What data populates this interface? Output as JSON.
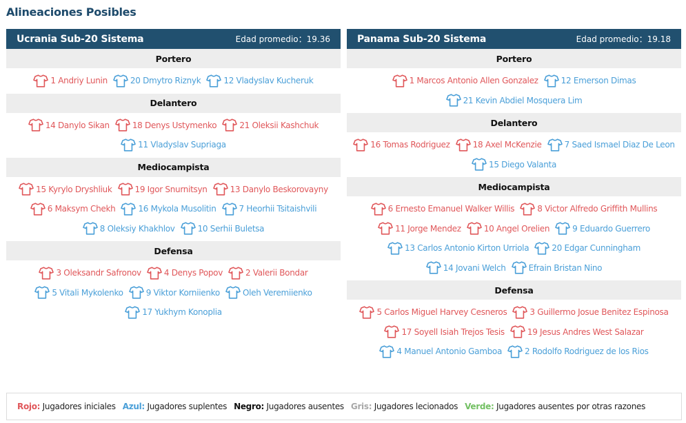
{
  "page": {
    "title": "Alineaciones Posibles"
  },
  "colors": {
    "starter": "#e0575a",
    "substitute": "#4a9fd8",
    "header_bg": "#21506f",
    "section_bg": "#ededed",
    "title": "#1d4a6b"
  },
  "icons": {
    "player": "shirt-icon"
  },
  "teams": [
    {
      "name": "Ucrania Sub-20 Sistema",
      "avg_age_label": "Edad promedio：",
      "avg_age": "19.36",
      "sections": [
        {
          "title": "Portero",
          "rows": [
            [
              {
                "label": "1 Andriy Lunin",
                "status": "starter"
              },
              {
                "label": "20 Dmytro Riznyk",
                "status": "sub"
              },
              {
                "label": "12 Vladyslav Kucheruk",
                "status": "sub"
              }
            ]
          ]
        },
        {
          "title": "Delantero",
          "rows": [
            [
              {
                "label": "14 Danylo Sikan",
                "status": "starter"
              },
              {
                "label": "18 Denys Ustymenko",
                "status": "starter"
              },
              {
                "label": "21 Oleksii Kashchuk",
                "status": "starter"
              }
            ],
            [
              {
                "label": "11 Vladyslav Supriaga",
                "status": "sub"
              }
            ]
          ]
        },
        {
          "title": "Mediocampista",
          "rows": [
            [
              {
                "label": "15 Kyrylo Dryshliuk",
                "status": "starter"
              },
              {
                "label": "19 Igor Snurnitsyn",
                "status": "starter"
              },
              {
                "label": "13 Danylo Beskorovayny",
                "status": "starter"
              }
            ],
            [
              {
                "label": "6 Maksym Chekh",
                "status": "starter"
              },
              {
                "label": "16 Mykola Musolitin",
                "status": "sub"
              },
              {
                "label": "7 Heorhii Tsitaishvili",
                "status": "sub"
              }
            ],
            [
              {
                "label": "8 Oleksiy Khakhlov",
                "status": "sub"
              },
              {
                "label": "10 Serhii Buletsa",
                "status": "sub"
              }
            ]
          ]
        },
        {
          "title": "Defensa",
          "rows": [
            [
              {
                "label": "3 Oleksandr Safronov",
                "status": "starter"
              },
              {
                "label": "4 Denys Popov",
                "status": "starter"
              },
              {
                "label": "2 Valerii Bondar",
                "status": "starter"
              }
            ],
            [
              {
                "label": "5 Vitali Mykolenko",
                "status": "sub"
              },
              {
                "label": "9 Viktor Korniienko",
                "status": "sub"
              },
              {
                "label": "Oleh Veremiienko",
                "status": "sub"
              }
            ],
            [
              {
                "label": "17 Yukhym Konoplia",
                "status": "sub"
              }
            ]
          ]
        }
      ]
    },
    {
      "name": "Panama Sub-20 Sistema",
      "avg_age_label": "Edad promedio：",
      "avg_age": "19.18",
      "sections": [
        {
          "title": "Portero",
          "rows": [
            [
              {
                "label": "1 Marcos Antonio Allen Gonzalez",
                "status": "starter"
              },
              {
                "label": "12 Emerson Dimas",
                "status": "sub"
              }
            ],
            [
              {
                "label": "21 Kevin Abdiel Mosquera Lim",
                "status": "sub"
              }
            ]
          ]
        },
        {
          "title": "Delantero",
          "rows": [
            [
              {
                "label": "16 Tomas Rodriguez",
                "status": "starter"
              },
              {
                "label": "18 Axel McKenzie",
                "status": "starter"
              },
              {
                "label": "7 Saed Ismael Diaz De Leon",
                "status": "sub"
              }
            ],
            [
              {
                "label": "15 Diego Valanta",
                "status": "sub"
              }
            ]
          ]
        },
        {
          "title": "Mediocampista",
          "rows": [
            [
              {
                "label": "6 Ernesto Emanuel Walker Willis",
                "status": "starter"
              },
              {
                "label": "8 Victor Alfredo Griffith Mullins",
                "status": "starter"
              }
            ],
            [
              {
                "label": "11 Jorge Mendez",
                "status": "starter"
              },
              {
                "label": "10 Angel Orelien",
                "status": "starter"
              },
              {
                "label": "9 Eduardo Guerrero",
                "status": "sub"
              }
            ],
            [
              {
                "label": "13 Carlos Antonio Kirton Urriola",
                "status": "sub"
              },
              {
                "label": "20 Edgar Cunningham",
                "status": "sub"
              }
            ],
            [
              {
                "label": "14 Jovani Welch",
                "status": "sub"
              },
              {
                "label": "Efrain Bristan Nino",
                "status": "sub"
              }
            ]
          ]
        },
        {
          "title": "Defensa",
          "rows": [
            [
              {
                "label": "5 Carlos Miguel Harvey Cesneros",
                "status": "starter"
              },
              {
                "label": "3 Guillermo Josue Benitez Espinosa",
                "status": "starter"
              }
            ],
            [
              {
                "label": "17 Soyell Isiah Trejos Tesis",
                "status": "starter"
              },
              {
                "label": "19 Jesus Andres West Salazar",
                "status": "starter"
              }
            ],
            [
              {
                "label": "4 Manuel Antonio Gamboa",
                "status": "sub"
              },
              {
                "label": "2 Rodolfo Rodriguez de los Rios",
                "status": "sub"
              }
            ]
          ]
        }
      ]
    }
  ],
  "legend": [
    {
      "key": "Rojo:",
      "text": " Jugadores iniciales",
      "color": "red"
    },
    {
      "key": "Azul:",
      "text": " Jugadores suplentes",
      "color": "blue"
    },
    {
      "key": "Negro:",
      "text": " Jugadores ausentes",
      "color": "black"
    },
    {
      "key": "Gris:",
      "text": " Jugadores lecionados",
      "color": "gray"
    },
    {
      "key": "Verde:",
      "text": " Jugadores ausentes por otras razones",
      "color": "green"
    }
  ]
}
